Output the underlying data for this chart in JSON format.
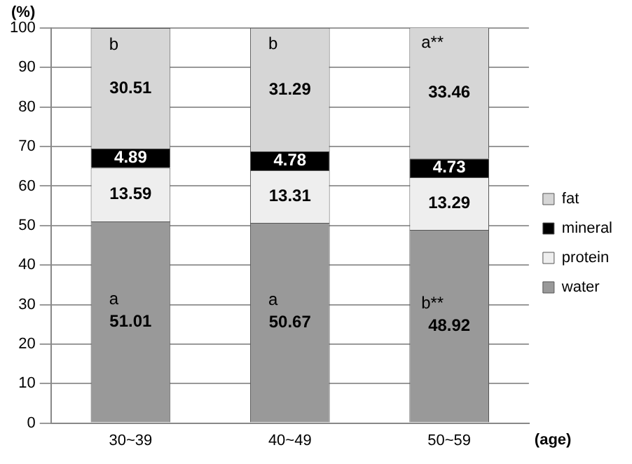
{
  "chart_data": {
    "type": "bar",
    "stacked": true,
    "ylabel": "(%)",
    "xlabel": "(age)",
    "categories": [
      "30~39",
      "40~49",
      "50~59"
    ],
    "series": [
      {
        "name": "water",
        "color": "#999999",
        "values": [
          51.01,
          50.67,
          48.92
        ]
      },
      {
        "name": "protein",
        "color": "#eeeeee",
        "values": [
          13.59,
          13.31,
          13.29
        ]
      },
      {
        "name": "mineral",
        "color": "#000000",
        "values": [
          4.89,
          4.78,
          4.73
        ]
      },
      {
        "name": "fat",
        "color": "#d6d6d6",
        "values": [
          30.51,
          31.29,
          33.46
        ]
      }
    ],
    "ylim": [
      0,
      100
    ],
    "yticks": [
      0,
      10,
      20,
      30,
      40,
      50,
      60,
      70,
      80,
      90,
      100
    ],
    "grid": "y",
    "legend": "right",
    "data_labels": true,
    "annotations": [
      "a",
      "a",
      "b**",
      "b",
      "b",
      "a**"
    ]
  }
}
